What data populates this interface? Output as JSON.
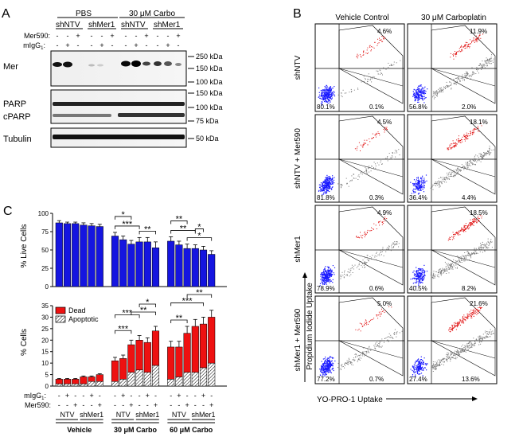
{
  "panels": {
    "a": "A",
    "b": "B",
    "c": "C"
  },
  "blot": {
    "group_pbs": "PBS",
    "group_carbo": "30 μM Carbo",
    "sub_shntv": "shNTV",
    "sub_shmer1": "shMer1",
    "row_mer590": "Mer590:",
    "row_migg": "mIgG",
    "row_migg_sub": "1",
    "mer590_signs": [
      "-",
      "-",
      "+",
      "-",
      "-",
      "+",
      "-",
      "-",
      "+",
      "-",
      "-",
      "+"
    ],
    "migg_signs": [
      "-",
      "+",
      "-",
      "-",
      "+",
      "-",
      "-",
      "+",
      "-",
      "-",
      "+",
      "-"
    ],
    "bands": {
      "mer": "Mer",
      "parp": "PARP",
      "cparp": "cPARP",
      "tubulin": "Tubulin"
    },
    "mw_mer": [
      "250 kDa",
      "150 kDa",
      "100 kDa"
    ],
    "mw_parp": [
      "150 kDa",
      "100 kDa",
      "75 kDa"
    ],
    "mw_tub": [
      "50 kDa"
    ]
  },
  "flow": {
    "col_vehicle": "Vehicle Control",
    "col_carbo": "30 μM Carboplatin",
    "rows": [
      "shNTV",
      "shNTV + Mer590",
      "shMer1",
      "shMer1 + Mer590"
    ],
    "y_axis": "Propidium Iodide Uptake",
    "x_axis": "YO-PRO-1 Uptake",
    "quadrants": [
      [
        [
          "4.6%",
          "80.1%",
          "0.1%"
        ],
        [
          "11.9%",
          "56.8%",
          "2.0%"
        ]
      ],
      [
        [
          "4.5%",
          "81.8%",
          "0.3%"
        ],
        [
          "18.1%",
          "36.4%",
          "4.4%"
        ]
      ],
      [
        [
          "4.9%",
          "78.9%",
          "0.6%"
        ],
        [
          "18.5%",
          "40.5%",
          "8.2%"
        ]
      ],
      [
        [
          "5.0%",
          "77.2%",
          "0.7%"
        ],
        [
          "21.6%",
          "27.4%",
          "13.6%"
        ]
      ]
    ]
  },
  "chart_data": [
    {
      "type": "bar",
      "title": "",
      "ylabel": "% Live Cells",
      "ylim": [
        0,
        100
      ],
      "yticks": [
        "0",
        "25",
        "50",
        "75",
        "100"
      ],
      "values": [
        87,
        86,
        86,
        84,
        83,
        82,
        69,
        64,
        58,
        61,
        61,
        53,
        62,
        57,
        52,
        52,
        50,
        44
      ],
      "errors": [
        3,
        2,
        2,
        3,
        3,
        3,
        5,
        5,
        5,
        6,
        6,
        8,
        6,
        5,
        6,
        5,
        5,
        5
      ],
      "significance": [
        "*",
        "***",
        "**",
        "**",
        "**",
        "*",
        "*"
      ],
      "color": "#1515e0"
    },
    {
      "type": "bar",
      "stacked": true,
      "ylabel": "% Cells",
      "ylim": [
        0,
        35
      ],
      "yticks": [
        "0",
        "5",
        "10",
        "15",
        "20",
        "25",
        "30",
        "35"
      ],
      "series": [
        {
          "name": "Dead",
          "color": "#ee1111",
          "values": [
            2,
            2,
            2,
            3,
            2,
            3,
            9,
            9,
            12,
            13,
            13,
            15,
            14,
            13,
            17,
            20,
            19,
            20
          ]
        },
        {
          "name": "Apoptotic",
          "color": "#ffffff",
          "values": [
            1,
            1,
            1,
            1,
            2,
            2,
            2,
            3,
            6,
            7,
            6,
            9,
            3,
            4,
            6,
            6,
            8,
            10
          ]
        }
      ],
      "errors": [
        0.3,
        0.3,
        0.3,
        0.4,
        0.4,
        0.4,
        1.5,
        1.5,
        2,
        2,
        2,
        2,
        2.5,
        2.5,
        3,
        3,
        3,
        3
      ],
      "significance": [
        "***",
        "***",
        "**",
        "*",
        "**",
        "***",
        "**"
      ],
      "legend_position": "top-left"
    }
  ],
  "c_labels": {
    "migg": "mIgG",
    "migg_sub": "1",
    "mer590": "Mer590:",
    "migg_signs": [
      "-",
      "+",
      "-",
      "-",
      "+",
      "-",
      "-",
      "+",
      "-",
      "-",
      "+",
      "-",
      "-",
      "+",
      "-",
      "-",
      "+",
      "-"
    ],
    "mer590_signs": [
      "-",
      "-",
      "+",
      "-",
      "-",
      "+",
      "-",
      "-",
      "+",
      "-",
      "-",
      "+",
      "-",
      "-",
      "+",
      "-",
      "-",
      "+"
    ],
    "ntv": "NTV",
    "shmer1": "shMer1",
    "groups": [
      "Vehicle",
      "30 μM Carbo",
      "60 μM Carbo"
    ]
  }
}
